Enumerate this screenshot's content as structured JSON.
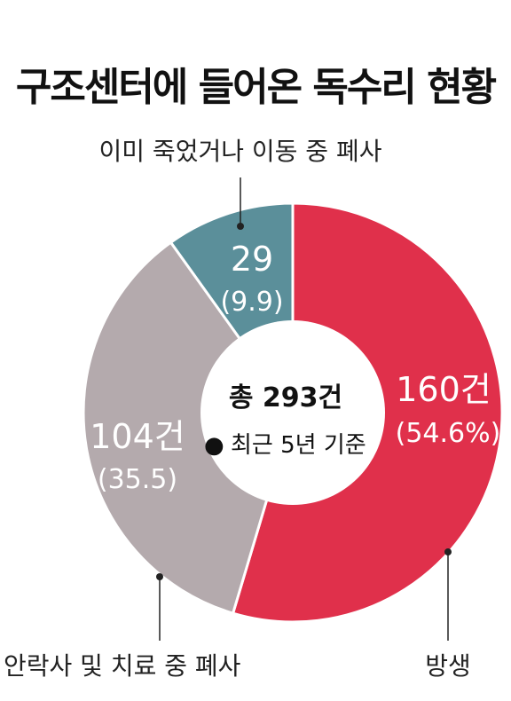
{
  "title": "구조센터에 들어온 독수리 현황",
  "colors": {
    "released": "#e0304b",
    "rehab_death": "#b4aaad",
    "dead": "#5b8f9a",
    "leader": "#222222"
  },
  "chart_data": {
    "type": "pie",
    "variant": "donut",
    "title": "구조센터에 들어온 독수리 현황",
    "total_label": "총 293건",
    "total": 293,
    "note_bullet": "●",
    "note": "최근 5년 기준",
    "slices": [
      {
        "category": "방생",
        "value": 160,
        "percent": 54.6,
        "value_label": "160건",
        "percent_label": "(54.6%)",
        "color": "#e0304b"
      },
      {
        "category": "안락사 및 치료 중 폐사",
        "value": 104,
        "percent": 35.5,
        "value_label": "104건",
        "percent_label": "(35.5)",
        "color": "#b4aaad"
      },
      {
        "category": "이미 죽었거나 이동 중 폐사",
        "value": 29,
        "percent": 9.9,
        "value_label": "29",
        "percent_label": "(9.9)",
        "color": "#5b8f9a"
      }
    ]
  }
}
